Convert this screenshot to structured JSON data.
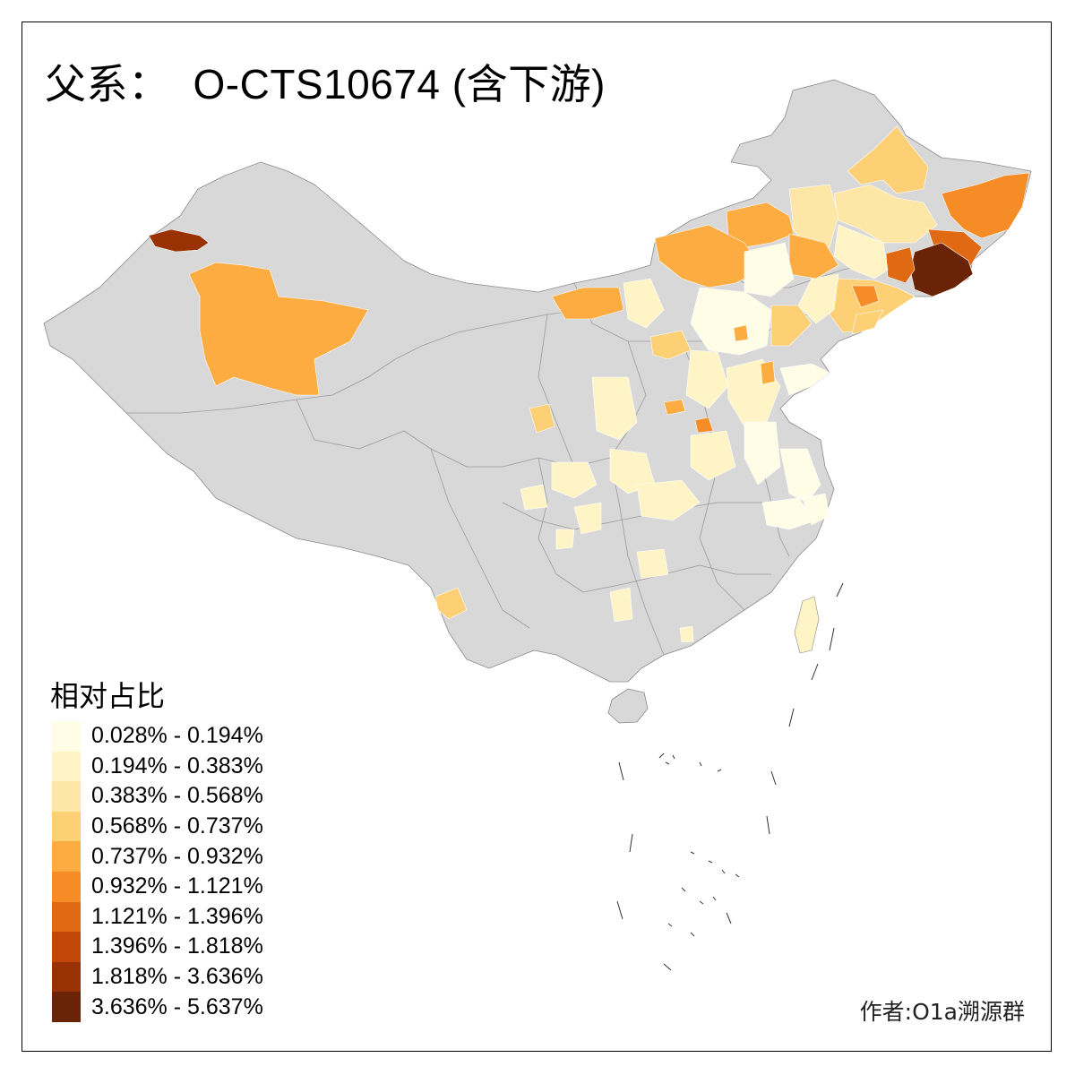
{
  "title": {
    "prefix": "父系：",
    "haplogroup": "O-CTS10674 (含下游)"
  },
  "legend": {
    "title": "相对占比",
    "classes": [
      {
        "label": "0.028% - 0.194%",
        "color": "#FFFDE6"
      },
      {
        "label": "0.194% - 0.383%",
        "color": "#FEF4C6"
      },
      {
        "label": "0.383% - 0.568%",
        "color": "#FEE6A6"
      },
      {
        "label": "0.568% - 0.737%",
        "color": "#FED075"
      },
      {
        "label": "0.737% - 0.932%",
        "color": "#FCAC41"
      },
      {
        "label": "0.932% - 1.121%",
        "color": "#F58C26"
      },
      {
        "label": "1.121% - 1.396%",
        "color": "#E06A14"
      },
      {
        "label": "1.396% - 1.818%",
        "color": "#C2480A"
      },
      {
        "label": "1.818% - 3.636%",
        "color": "#983205"
      },
      {
        "label": "3.636% - 5.637%",
        "color": "#6A2306"
      }
    ]
  },
  "no_data_color": "#D8D8D8",
  "author": "作者:O1a溯源群"
}
